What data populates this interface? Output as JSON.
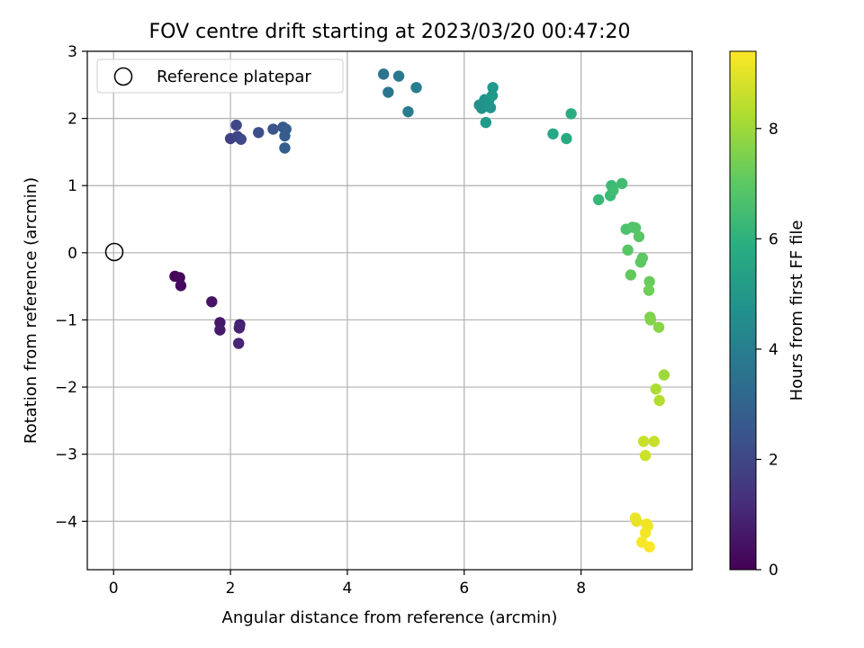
{
  "chart_data": {
    "type": "scatter",
    "title": "FOV centre drift starting at 2023/03/20 00:47:20",
    "xlabel": "Angular distance from reference (arcmin)",
    "ylabel": "Rotation from reference (arcmin)",
    "xlim": [
      -0.45,
      9.9
    ],
    "ylim": [
      -4.72,
      3.0
    ],
    "xticks": [
      "0",
      "2",
      "4",
      "6",
      "8"
    ],
    "yticks": [
      "3",
      "2",
      "1",
      "0",
      "−1",
      "−2",
      "−3",
      "−4"
    ],
    "grid": true,
    "legend": {
      "placement": "top-left",
      "label": "Reference platepar"
    },
    "reference": {
      "x": 0,
      "y": 0
    },
    "colorbar": {
      "label": "Hours from first FF file",
      "min": 0,
      "max": 9.4,
      "ticks": [
        "0",
        "2",
        "4",
        "6",
        "8"
      ],
      "colormap": "viridis"
    },
    "points": [
      {
        "x": 1.05,
        "y": -0.35,
        "t": 0.1
      },
      {
        "x": 1.13,
        "y": -0.37,
        "t": 0.2
      },
      {
        "x": 1.15,
        "y": -0.49,
        "t": 0.3
      },
      {
        "x": 1.68,
        "y": -0.73,
        "t": 0.5
      },
      {
        "x": 1.82,
        "y": -1.04,
        "t": 0.6
      },
      {
        "x": 1.82,
        "y": -1.15,
        "t": 0.7
      },
      {
        "x": 2.16,
        "y": -1.07,
        "t": 0.8
      },
      {
        "x": 2.15,
        "y": -1.12,
        "t": 0.9
      },
      {
        "x": 2.14,
        "y": -1.35,
        "t": 1.0
      },
      {
        "x": 2.0,
        "y": 1.7,
        "t": 1.8
      },
      {
        "x": 2.12,
        "y": 1.73,
        "t": 1.9
      },
      {
        "x": 2.1,
        "y": 1.9,
        "t": 2.0
      },
      {
        "x": 2.18,
        "y": 1.69,
        "t": 2.1
      },
      {
        "x": 2.48,
        "y": 1.79,
        "t": 2.3
      },
      {
        "x": 2.73,
        "y": 1.84,
        "t": 2.5
      },
      {
        "x": 2.9,
        "y": 1.87,
        "t": 2.6
      },
      {
        "x": 2.93,
        "y": 1.74,
        "t": 2.7
      },
      {
        "x": 2.95,
        "y": 1.84,
        "t": 2.7
      },
      {
        "x": 2.93,
        "y": 1.56,
        "t": 2.8
      },
      {
        "x": 4.62,
        "y": 2.66,
        "t": 3.6
      },
      {
        "x": 4.7,
        "y": 2.39,
        "t": 3.7
      },
      {
        "x": 4.88,
        "y": 2.63,
        "t": 3.8
      },
      {
        "x": 5.04,
        "y": 2.1,
        "t": 3.9
      },
      {
        "x": 5.18,
        "y": 2.46,
        "t": 4.0
      },
      {
        "x": 6.26,
        "y": 2.2,
        "t": 4.7
      },
      {
        "x": 6.3,
        "y": 2.15,
        "t": 4.8
      },
      {
        "x": 6.35,
        "y": 2.28,
        "t": 4.8
      },
      {
        "x": 6.42,
        "y": 2.27,
        "t": 4.9
      },
      {
        "x": 6.45,
        "y": 2.16,
        "t": 4.9
      },
      {
        "x": 6.48,
        "y": 2.34,
        "t": 5.0
      },
      {
        "x": 6.49,
        "y": 2.46,
        "t": 5.0
      },
      {
        "x": 6.37,
        "y": 1.94,
        "t": 5.1
      },
      {
        "x": 7.52,
        "y": 1.77,
        "t": 5.6
      },
      {
        "x": 7.75,
        "y": 1.7,
        "t": 5.7
      },
      {
        "x": 7.83,
        "y": 2.07,
        "t": 5.8
      },
      {
        "x": 8.3,
        "y": 0.79,
        "t": 6.3
      },
      {
        "x": 8.5,
        "y": 0.85,
        "t": 6.4
      },
      {
        "x": 8.52,
        "y": 1.0,
        "t": 6.4
      },
      {
        "x": 8.55,
        "y": 0.93,
        "t": 6.5
      },
      {
        "x": 8.7,
        "y": 1.03,
        "t": 6.5
      },
      {
        "x": 8.77,
        "y": 0.35,
        "t": 6.7
      },
      {
        "x": 8.88,
        "y": 0.38,
        "t": 6.8
      },
      {
        "x": 8.93,
        "y": 0.37,
        "t": 6.8
      },
      {
        "x": 8.99,
        "y": 0.24,
        "t": 6.9
      },
      {
        "x": 8.8,
        "y": 0.04,
        "t": 6.9
      },
      {
        "x": 9.05,
        "y": -0.08,
        "t": 7.0
      },
      {
        "x": 9.02,
        "y": -0.14,
        "t": 7.0
      },
      {
        "x": 8.85,
        "y": -0.33,
        "t": 7.1
      },
      {
        "x": 9.17,
        "y": -0.43,
        "t": 7.2
      },
      {
        "x": 9.16,
        "y": -0.56,
        "t": 7.3
      },
      {
        "x": 9.18,
        "y": -0.96,
        "t": 7.5
      },
      {
        "x": 9.19,
        "y": -1.0,
        "t": 7.6
      },
      {
        "x": 9.33,
        "y": -1.11,
        "t": 7.7
      },
      {
        "x": 9.42,
        "y": -1.82,
        "t": 8.0
      },
      {
        "x": 9.28,
        "y": -2.03,
        "t": 8.2
      },
      {
        "x": 9.34,
        "y": -2.2,
        "t": 8.3
      },
      {
        "x": 9.07,
        "y": -2.81,
        "t": 8.6
      },
      {
        "x": 9.25,
        "y": -2.81,
        "t": 8.6
      },
      {
        "x": 9.1,
        "y": -3.02,
        "t": 8.7
      },
      {
        "x": 8.93,
        "y": -3.95,
        "t": 9.1
      },
      {
        "x": 8.95,
        "y": -4.0,
        "t": 9.1
      },
      {
        "x": 9.12,
        "y": -4.04,
        "t": 9.2
      },
      {
        "x": 9.14,
        "y": -4.07,
        "t": 9.2
      },
      {
        "x": 9.1,
        "y": -4.17,
        "t": 9.25
      },
      {
        "x": 9.04,
        "y": -4.31,
        "t": 9.3
      },
      {
        "x": 9.17,
        "y": -4.38,
        "t": 9.35
      }
    ]
  }
}
